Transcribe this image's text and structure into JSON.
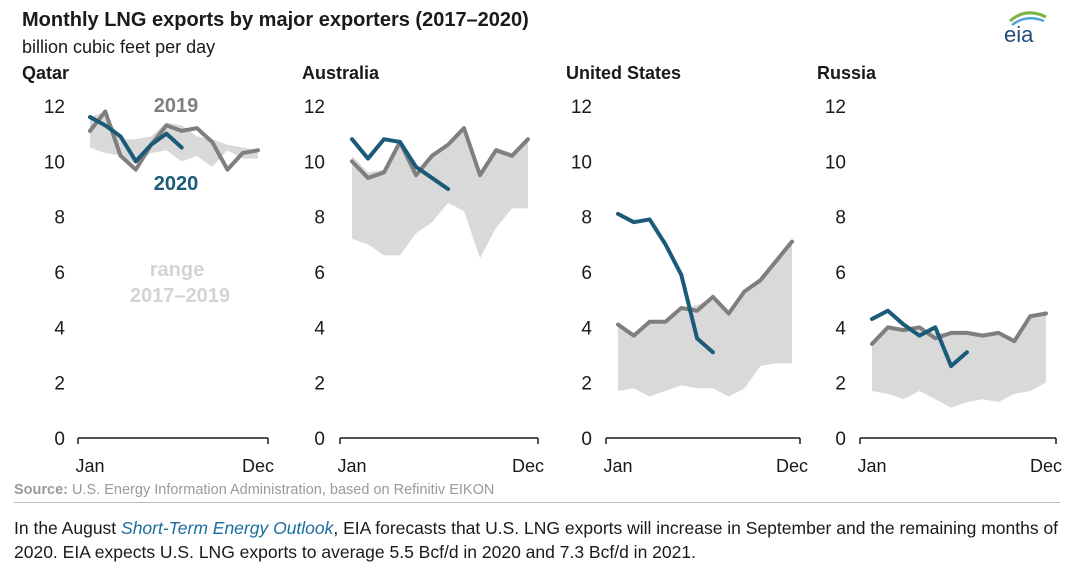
{
  "header": {
    "title": "Monthly LNG exports by major exporters (2017–2020)",
    "subtitle": "billion cubic feet per day",
    "logo_text": "eia"
  },
  "colors": {
    "line_2019": "#7f7f7f",
    "line_2020": "#1c5a7a",
    "range_fill": "#d9d9d9",
    "axis": "#1a1a1a",
    "label_2019": "#7f7f7f",
    "label_2020": "#1c5a7a",
    "label_range": "#d4d4d4",
    "link": "#1a6e9c"
  },
  "chart_data": [
    {
      "type": "line",
      "title": "Qatar",
      "ylabel": "billion cubic feet per day",
      "ylim": [
        0,
        12
      ],
      "yticks": [
        "0",
        "2",
        "4",
        "6",
        "8",
        "10",
        "12"
      ],
      "x_tick_labels": [
        "Jan",
        "Dec"
      ],
      "annotations": [
        "2019",
        "2020",
        "range",
        "2017–2019"
      ],
      "range_2017_2019": {
        "low": [
          10.5,
          10.3,
          10.2,
          9.9,
          10.3,
          10.4,
          10.0,
          10.2,
          9.8,
          10.4,
          10.1,
          10.1
        ],
        "high": [
          11.6,
          11.8,
          10.8,
          10.8,
          10.9,
          11.4,
          11.3,
          10.9,
          10.8,
          10.6,
          10.5,
          10.4
        ]
      },
      "series": [
        {
          "name": "2019",
          "values": [
            11.1,
            11.8,
            10.2,
            9.7,
            10.6,
            11.3,
            11.1,
            11.2,
            10.7,
            9.7,
            10.3,
            10.4
          ]
        },
        {
          "name": "2020",
          "values": [
            11.6,
            11.3,
            10.9,
            10.0,
            10.6,
            11.0,
            10.5
          ]
        }
      ]
    },
    {
      "type": "line",
      "title": "Australia",
      "ylim": [
        0,
        12
      ],
      "yticks": [
        "0",
        "2",
        "4",
        "6",
        "8",
        "10",
        "12"
      ],
      "x_tick_labels": [
        "Jan",
        "Dec"
      ],
      "range_2017_2019": {
        "low": [
          7.2,
          7.0,
          6.6,
          6.6,
          7.4,
          7.8,
          8.5,
          8.2,
          6.5,
          7.6,
          8.3,
          8.3
        ],
        "high": [
          10.2,
          9.6,
          9.7,
          10.7,
          9.6,
          10.3,
          10.6,
          11.2,
          9.6,
          10.5,
          10.3,
          10.9
        ]
      },
      "series": [
        {
          "name": "2019",
          "values": [
            10.0,
            9.4,
            9.6,
            10.7,
            9.5,
            10.2,
            10.6,
            11.2,
            9.5,
            10.4,
            10.2,
            10.8
          ]
        },
        {
          "name": "2020",
          "values": [
            10.8,
            10.1,
            10.8,
            10.7,
            9.8,
            9.4,
            9.0
          ]
        }
      ]
    },
    {
      "type": "line",
      "title": "United States",
      "ylim": [
        0,
        12
      ],
      "yticks": [
        "0",
        "2",
        "4",
        "6",
        "8",
        "10",
        "12"
      ],
      "x_tick_labels": [
        "Jan",
        "Dec"
      ],
      "range_2017_2019": {
        "low": [
          1.7,
          1.8,
          1.5,
          1.7,
          1.9,
          1.8,
          1.8,
          1.5,
          1.8,
          2.6,
          2.7,
          2.7
        ],
        "high": [
          4.1,
          3.7,
          4.2,
          4.2,
          4.7,
          4.8,
          5.1,
          4.5,
          5.3,
          5.7,
          6.4,
          7.1
        ]
      },
      "series": [
        {
          "name": "2019",
          "values": [
            4.1,
            3.7,
            4.2,
            4.2,
            4.7,
            4.6,
            5.1,
            4.5,
            5.3,
            5.7,
            6.4,
            7.1
          ]
        },
        {
          "name": "2020",
          "values": [
            8.1,
            7.8,
            7.9,
            7.0,
            5.9,
            3.6,
            3.1
          ]
        }
      ]
    },
    {
      "type": "line",
      "title": "Russia",
      "ylim": [
        0,
        12
      ],
      "yticks": [
        "0",
        "2",
        "4",
        "6",
        "8",
        "10",
        "12"
      ],
      "x_tick_labels": [
        "Jan",
        "Dec"
      ],
      "range_2017_2019": {
        "low": [
          1.7,
          1.6,
          1.4,
          1.7,
          1.4,
          1.1,
          1.3,
          1.4,
          1.3,
          1.6,
          1.7,
          2.0
        ],
        "high": [
          3.4,
          4.0,
          3.9,
          4.0,
          3.8,
          3.8,
          3.8,
          3.7,
          3.8,
          3.5,
          4.4,
          4.5
        ]
      },
      "series": [
        {
          "name": "2019",
          "values": [
            3.4,
            4.0,
            3.9,
            4.0,
            3.6,
            3.8,
            3.8,
            3.7,
            3.8,
            3.5,
            4.4,
            4.5
          ]
        },
        {
          "name": "2020",
          "values": [
            4.3,
            4.6,
            4.1,
            3.7,
            4.0,
            2.6,
            3.1
          ]
        }
      ]
    }
  ],
  "footer": {
    "source_label": "Source:",
    "source_text": " U.S. Energy Information Administration, based on Refinitiv EIKON",
    "caption_pre": "In the August ",
    "caption_link": "Short-Term Energy Outlook",
    "caption_post": ", EIA forecasts that U.S. LNG exports will increase in September and the remaining months of 2020. EIA expects U.S. LNG exports to average 5.5 Bcf/d in 2020 and 7.3 Bcf/d in 2021."
  }
}
